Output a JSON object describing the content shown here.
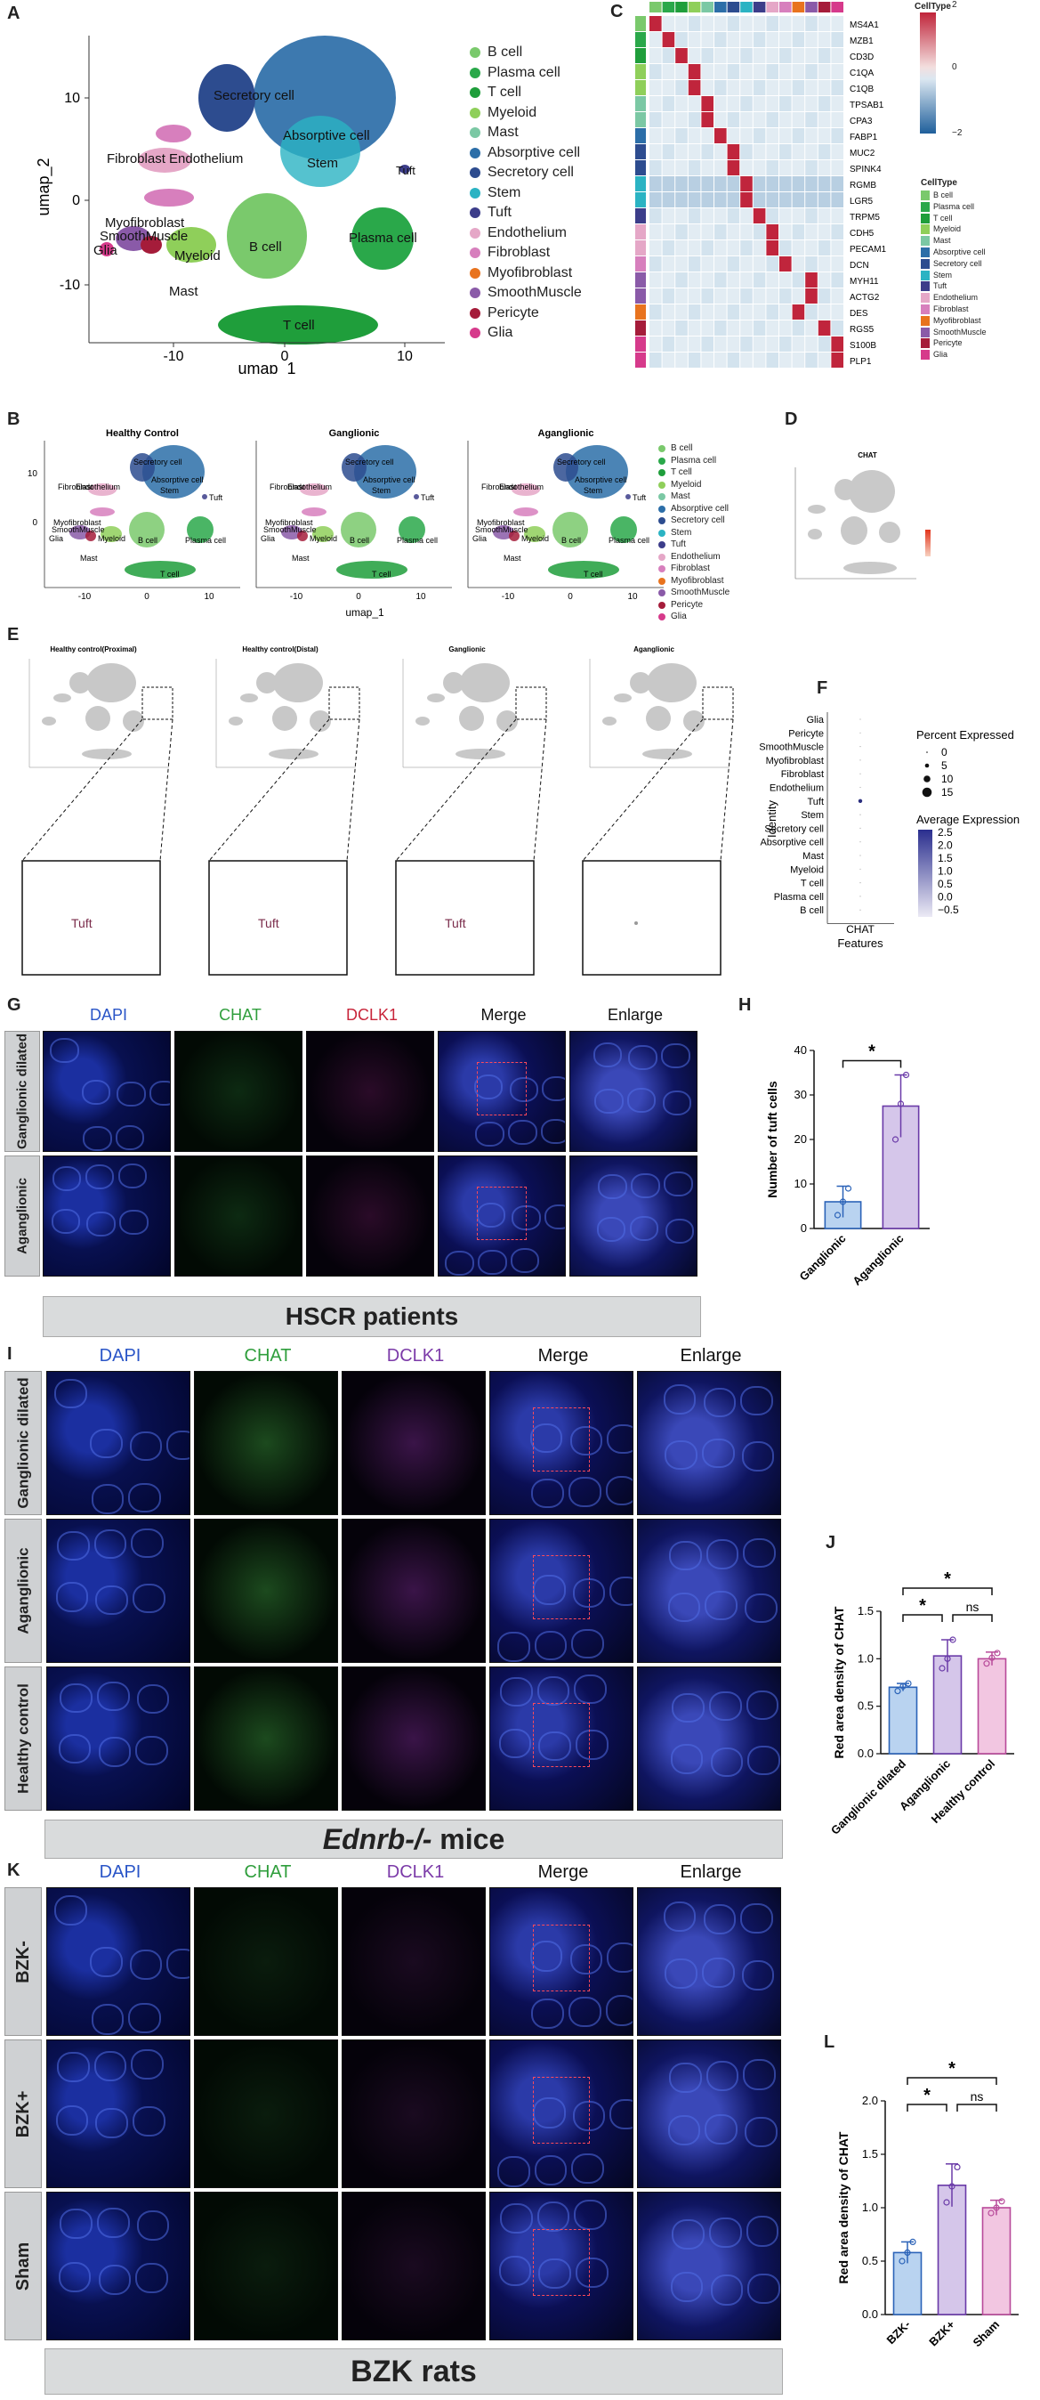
{
  "panels": {
    "A": "A",
    "B": "B",
    "C": "C",
    "D": "D",
    "E": "E",
    "F": "F",
    "G": "G",
    "H": "H",
    "I": "I",
    "J": "J",
    "K": "K",
    "L": "L"
  },
  "umap": {
    "xlabel": "umap_1",
    "ylabel": "umap_2",
    "x_ticks": [
      "-10",
      "0",
      "10"
    ],
    "y_ticks": [
      "10",
      "0",
      "-10"
    ],
    "cluster_labels": [
      "Secretory cell",
      "Fibroblast",
      "Endothelium",
      "Absorptive cell",
      "Stem",
      "Tuft",
      "Myofibroblast",
      "SmoothMuscle",
      "Glia",
      "Myeloid",
      "B cell",
      "Plasma cell",
      "Mast",
      "T cell"
    ],
    "celltypes": [
      {
        "name": "B cell",
        "color": "#7ac96c"
      },
      {
        "name": "Plasma cell",
        "color": "#2aa84a"
      },
      {
        "name": "T cell",
        "color": "#1f9e3b"
      },
      {
        "name": "Myeloid",
        "color": "#8fcf5a"
      },
      {
        "name": "Mast",
        "color": "#7bc8a4"
      },
      {
        "name": "Absorptive cell",
        "color": "#2c6ea8"
      },
      {
        "name": "Secretory cell",
        "color": "#2d4c8f"
      },
      {
        "name": "Stem",
        "color": "#2bb3c3"
      },
      {
        "name": "Tuft",
        "color": "#3c3d8a"
      },
      {
        "name": "Endothelium",
        "color": "#e5a7c7"
      },
      {
        "name": "Fibroblast",
        "color": "#d77fbd"
      },
      {
        "name": "Myofibroblast",
        "color": "#e8731e"
      },
      {
        "name": "SmoothMuscle",
        "color": "#8a5aa8"
      },
      {
        "name": "Pericyte",
        "color": "#a51c3a"
      },
      {
        "name": "Glia",
        "color": "#d63a8b"
      }
    ]
  },
  "heatmap": {
    "genes": [
      "MS4A1",
      "MZB1",
      "CD3D",
      "C1QA",
      "C1QB",
      "TPSAB1",
      "CPA3",
      "FABP1",
      "MUC2",
      "SPINK4",
      "RGMB",
      "LGR5",
      "TRPM5",
      "CDH5",
      "PECAM1",
      "DCN",
      "MYH11",
      "ACTG2",
      "DES",
      "RGS5",
      "S100B",
      "PLP1"
    ],
    "legend_title": "CellType",
    "scale_ticks": [
      "2",
      "0",
      "−2"
    ]
  },
  "panel_b": {
    "titles": [
      "Healthy Control",
      "Ganglionic",
      "Aganglionic"
    ],
    "xlabel": "umap_1"
  },
  "panel_d": {
    "title": "CHAT"
  },
  "panel_e": {
    "titles": [
      "Healthy control(Proximal)",
      "Healthy control(Distal)",
      "Ganglionic",
      "Aganglionic"
    ],
    "zoom_label": "Tuft"
  },
  "dotplot": {
    "ylabel": "Identity",
    "xlabel": "CHAT",
    "xlabel2": "Features",
    "identities": [
      "Glia",
      "Pericyte",
      "SmoothMuscle",
      "Myofibroblast",
      "Fibroblast",
      "Endothelium",
      "Tuft",
      "Stem",
      "Secretory cell",
      "Absorptive cell",
      "Mast",
      "Myeloid",
      "T cell",
      "Plasma cell",
      "B cell"
    ],
    "pct_title": "Percent Expressed",
    "pct_values": [
      "0",
      "5",
      "10",
      "15"
    ],
    "avg_title": "Average Expression",
    "avg_ticks": [
      "2.5",
      "2.0",
      "1.5",
      "1.0",
      "0.5",
      "0.0",
      "−0.5"
    ]
  },
  "channels": [
    "DAPI",
    "CHAT",
    "DCLK1",
    "Merge",
    "Enlarge"
  ],
  "panel_g": {
    "rows": [
      "Ganglionic dilated",
      "Aganglionic"
    ],
    "banner": "HSCR patients"
  },
  "panel_i": {
    "rows": [
      "Ganglionic dilated",
      "Aganglionic",
      "Healthy control"
    ],
    "banner_italic": "Ednrb-/-",
    "banner_rest": " mice"
  },
  "panel_k": {
    "rows": [
      "BZK-",
      "BZK+",
      "Sham"
    ],
    "banner": "BZK rats"
  },
  "chart_data": [
    {
      "type": "bar",
      "panel": "H",
      "categories": [
        "Ganglionic",
        "Aganglionic"
      ],
      "values": [
        6,
        27.5
      ],
      "errors": [
        3.5,
        7
      ],
      "points": [
        [
          3,
          6,
          9
        ],
        [
          20,
          28,
          34.5
        ]
      ],
      "colors": [
        "#b9d3f0",
        "#d5c6ea"
      ],
      "edge_colors": [
        "#2b63b8",
        "#6a3aa8"
      ],
      "ylabel": "Number of tuft cells",
      "ylim": [
        0,
        40
      ],
      "yticks": [
        0,
        10,
        20,
        30,
        40
      ],
      "significance": [
        {
          "pair": [
            0,
            1
          ],
          "label": "*"
        }
      ]
    },
    {
      "type": "bar",
      "panel": "J",
      "categories": [
        "Ganglionic dilated",
        "Aganglionic",
        "Healthy control"
      ],
      "values": [
        0.7,
        1.03,
        1.0
      ],
      "errors": [
        0.04,
        0.17,
        0.07
      ],
      "points": [
        [
          0.66,
          0.71,
          0.74
        ],
        [
          0.9,
          1.0,
          1.2
        ],
        [
          0.95,
          1.01,
          1.06
        ]
      ],
      "colors": [
        "#b9d3f0",
        "#d5c6ea",
        "#f2c6e1"
      ],
      "edge_colors": [
        "#2b63b8",
        "#6a3aa8",
        "#b84a9a"
      ],
      "ylabel": "Red area density of CHAT",
      "ylim": [
        0,
        1.5
      ],
      "yticks": [
        0.0,
        0.5,
        1.0,
        1.5
      ],
      "significance": [
        {
          "pair": [
            0,
            1
          ],
          "label": "*"
        },
        {
          "pair": [
            1,
            2
          ],
          "label": "ns"
        },
        {
          "pair": [
            0,
            2
          ],
          "label": "*"
        }
      ]
    },
    {
      "type": "bar",
      "panel": "L",
      "categories": [
        "BZK-",
        "BZK+",
        "Sham"
      ],
      "values": [
        0.58,
        1.21,
        1.0
      ],
      "errors": [
        0.1,
        0.2,
        0.07
      ],
      "points": [
        [
          0.5,
          0.58,
          0.68
        ],
        [
          1.05,
          1.2,
          1.38
        ],
        [
          0.95,
          1.0,
          1.06
        ]
      ],
      "colors": [
        "#b9d3f0",
        "#d5c6ea",
        "#f2c6e1"
      ],
      "edge_colors": [
        "#2b63b8",
        "#6a3aa8",
        "#b84a9a"
      ],
      "ylabel": "Red area density of CHAT",
      "ylim": [
        0,
        2.0
      ],
      "yticks": [
        0.0,
        0.5,
        1.0,
        1.5,
        2.0
      ],
      "significance": [
        {
          "pair": [
            0,
            1
          ],
          "label": "*"
        },
        {
          "pair": [
            1,
            2
          ],
          "label": "ns"
        },
        {
          "pair": [
            0,
            2
          ],
          "label": "*"
        }
      ]
    }
  ]
}
